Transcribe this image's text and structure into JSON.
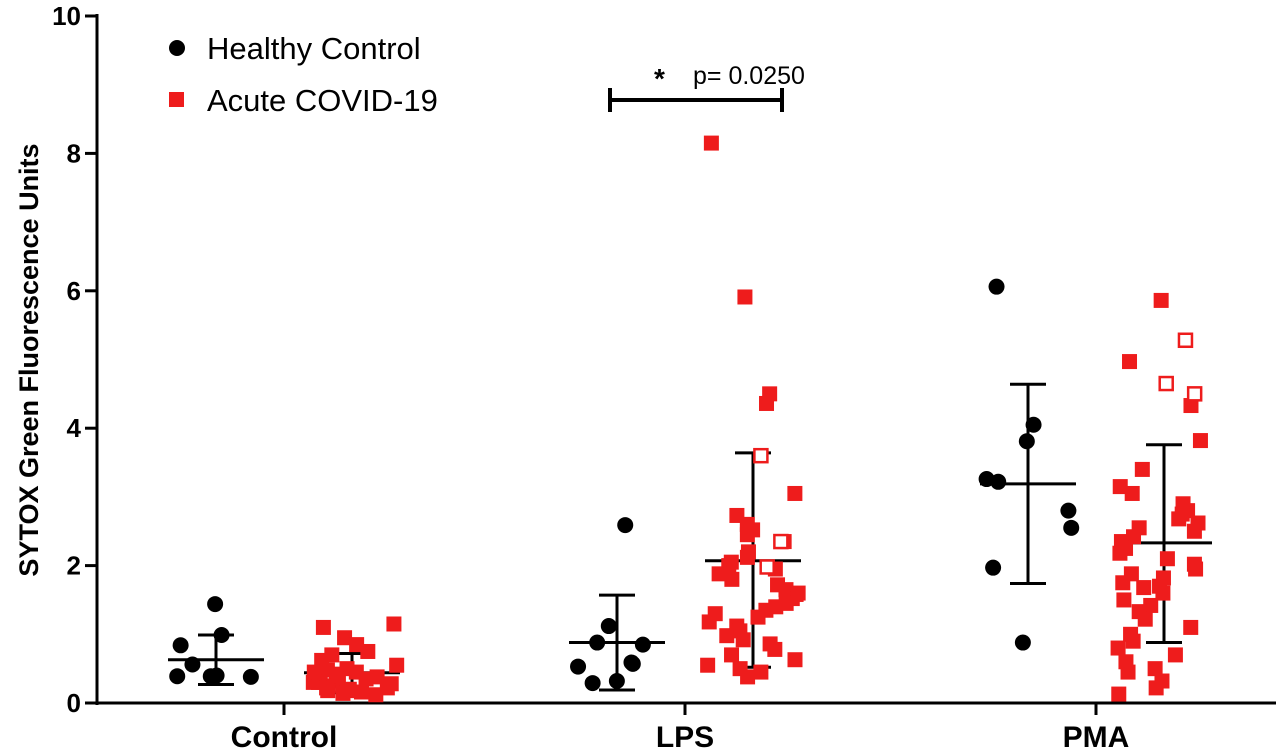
{
  "chart_data": {
    "type": "scatter",
    "categories": [
      "Control",
      "LPS",
      "PMA"
    ],
    "ylabel": "SYTOX Green Fluorescence Units",
    "ylim": [
      0,
      10
    ],
    "yticks": [
      "0",
      "2",
      "4",
      "6",
      "8",
      "10"
    ],
    "legend_position": "top-left",
    "grid": false,
    "series": [
      {
        "name": "Healthy Control",
        "marker": "circle",
        "color": "#000000",
        "groups": [
          {
            "category": "Control",
            "mean": 0.63,
            "sd_low": 0.27,
            "sd_high": 0.99,
            "points": [
              1.44,
              0.99,
              0.84,
              0.56,
              0.39,
              0.4,
              0.39,
              0.38
            ]
          },
          {
            "category": "LPS",
            "mean": 0.88,
            "sd_low": 0.19,
            "sd_high": 1.57,
            "points": [
              2.59,
              1.12,
              0.88,
              0.85,
              0.59,
              0.53,
              0.32,
              0.29,
              0.57
            ]
          },
          {
            "category": "PMA",
            "mean": 3.19,
            "sd_low": 1.74,
            "sd_high": 4.64,
            "points": [
              6.06,
              4.05,
              3.81,
              3.22,
              3.26,
              2.8,
              2.55,
              1.97,
              0.88
            ]
          }
        ]
      },
      {
        "name": "Acute COVID-19",
        "marker": "square",
        "color": "#ee1c1c",
        "groups": [
          {
            "category": "Control",
            "mean": 0.44,
            "sd_low": 0.15,
            "sd_high": 0.72,
            "points": [
              1.15,
              1.1,
              0.95,
              0.85,
              0.75,
              0.7,
              0.62,
              0.55,
              0.5,
              0.48,
              0.45,
              0.42,
              0.4,
              0.38,
              0.35,
              0.32,
              0.3,
              0.28,
              0.25,
              0.22,
              0.2,
              0.18,
              0.16,
              0.14,
              0.12,
              0.35,
              0.3,
              0.22,
              0.18,
              0.45
            ]
          },
          {
            "category": "LPS",
            "mean": 2.07,
            "sd_low": 0.52,
            "sd_high": 3.64,
            "points": [
              8.15,
              5.91,
              4.5,
              4.36,
              3.05,
              2.73,
              2.6,
              2.52,
              2.45,
              2.35,
              2.2,
              2.12,
              2.05,
              2.0,
              1.95,
              1.88,
              1.8,
              1.72,
              1.65,
              1.58,
              1.52,
              1.45,
              1.4,
              1.35,
              1.25,
              1.18,
              1.12,
              1.05,
              0.98,
              0.92,
              0.86,
              0.78,
              0.7,
              0.63,
              0.55,
              0.5,
              0.45,
              0.38,
              1.3,
              1.6
            ],
            "open_points": [
              3.6,
              2.35,
              1.98
            ]
          },
          {
            "category": "PMA",
            "mean": 2.33,
            "sd_low": 0.88,
            "sd_high": 3.76,
            "points": [
              5.86,
              4.97,
              4.33,
              3.82,
              3.4,
              3.15,
              3.05,
              2.9,
              2.75,
              2.68,
              2.62,
              2.55,
              2.5,
              2.42,
              2.35,
              2.25,
              2.18,
              2.1,
              2.02,
              1.95,
              1.88,
              1.82,
              1.75,
              1.68,
              1.6,
              1.5,
              1.42,
              1.33,
              1.22,
              1.1,
              1.0,
              0.9,
              0.8,
              0.7,
              0.6,
              0.5,
              0.45,
              0.32,
              0.22,
              0.13,
              2.8,
              1.7
            ],
            "open_points": [
              5.28,
              4.65,
              4.5
            ]
          }
        ]
      }
    ],
    "annotation": {
      "star": "*",
      "text": "p= 0.0250",
      "from_category": "LPS"
    }
  }
}
